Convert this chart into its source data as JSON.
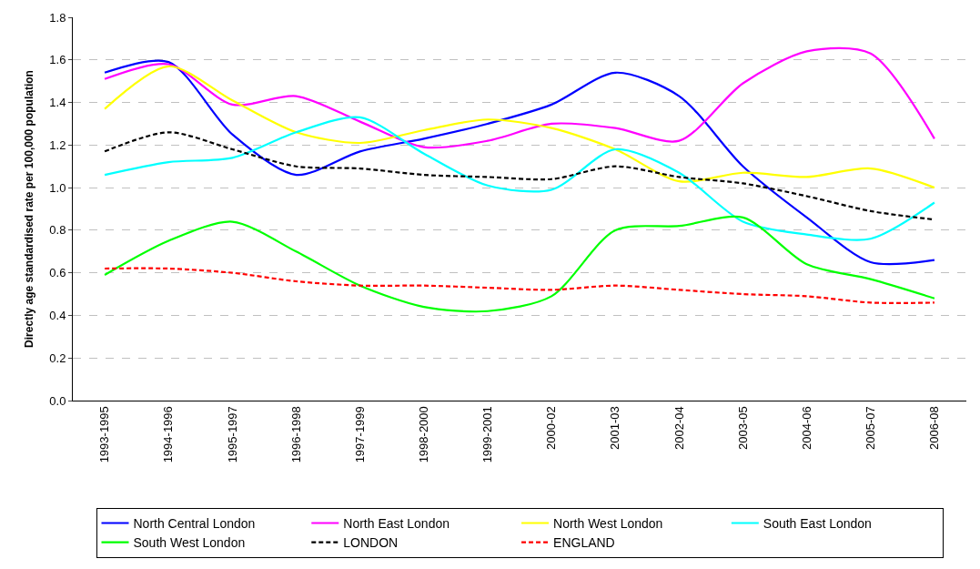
{
  "chart_data": {
    "type": "line",
    "ylabel": "Directly age standardised rate per 100,000 population",
    "categories": [
      "1993-1995",
      "1994-1996",
      "1995-1997",
      "1996-1998",
      "1997-1999",
      "1998-2000",
      "1999-2001",
      "2000-02",
      "2001-03",
      "2002-04",
      "2003-05",
      "2004-06",
      "2005-07",
      "2006-08"
    ],
    "ylim": [
      0,
      1.8
    ],
    "yticks": [
      {
        "value": 0,
        "label": "0.0"
      },
      {
        "value": 0.2,
        "label": "0.2"
      },
      {
        "value": 0.4,
        "label": "0.4"
      },
      {
        "value": 0.6,
        "label": "0.6"
      },
      {
        "value": 0.8,
        "label": "0.8"
      },
      {
        "value": 1.0,
        "label": "1.0"
      },
      {
        "value": 1.2,
        "label": "1.2"
      },
      {
        "value": 1.4,
        "label": "1.4"
      },
      {
        "value": 1.6,
        "label": "1.6"
      },
      {
        "value": 1.8,
        "label": "1.8"
      }
    ],
    "grid": "y",
    "legend": "bottom",
    "marker": "none",
    "series": [
      {
        "name": "North Central London",
        "color": "#0000ff",
        "line_style": "solid",
        "values": [
          1.54,
          1.59,
          1.25,
          1.06,
          1.17,
          1.23,
          1.3,
          1.39,
          1.54,
          1.43,
          1.1,
          0.86,
          0.65,
          0.66
        ]
      },
      {
        "name": "North East London",
        "color": "#ff00ff",
        "line_style": "solid",
        "values": [
          1.51,
          1.58,
          1.39,
          1.43,
          1.31,
          1.19,
          1.22,
          1.3,
          1.28,
          1.22,
          1.49,
          1.64,
          1.63,
          1.23
        ]
      },
      {
        "name": "North West London",
        "color": "#ffff00",
        "line_style": "solid",
        "values": [
          1.37,
          1.57,
          1.41,
          1.26,
          1.21,
          1.27,
          1.32,
          1.28,
          1.18,
          1.03,
          1.07,
          1.05,
          1.09,
          1.0
        ]
      },
      {
        "name": "South East London",
        "color": "#00ffff",
        "line_style": "solid",
        "values": [
          1.06,
          1.12,
          1.14,
          1.26,
          1.33,
          1.16,
          1.01,
          0.99,
          1.18,
          1.07,
          0.84,
          0.78,
          0.76,
          0.93
        ]
      },
      {
        "name": "South West London",
        "color": "#00ff00",
        "line_style": "solid",
        "values": [
          0.59,
          0.75,
          0.84,
          0.7,
          0.54,
          0.44,
          0.42,
          0.49,
          0.8,
          0.82,
          0.86,
          0.64,
          0.57,
          0.48
        ]
      },
      {
        "name": "LONDON",
        "color": "#000000",
        "line_style": "dashed",
        "values": [
          1.17,
          1.26,
          1.18,
          1.1,
          1.09,
          1.06,
          1.05,
          1.04,
          1.1,
          1.05,
          1.02,
          0.96,
          0.89,
          0.85
        ]
      },
      {
        "name": "ENGLAND",
        "color": "#ff0000",
        "line_style": "dashed",
        "values": [
          0.62,
          0.62,
          0.6,
          0.56,
          0.54,
          0.54,
          0.53,
          0.52,
          0.54,
          0.52,
          0.5,
          0.49,
          0.46,
          0.46
        ]
      }
    ]
  }
}
